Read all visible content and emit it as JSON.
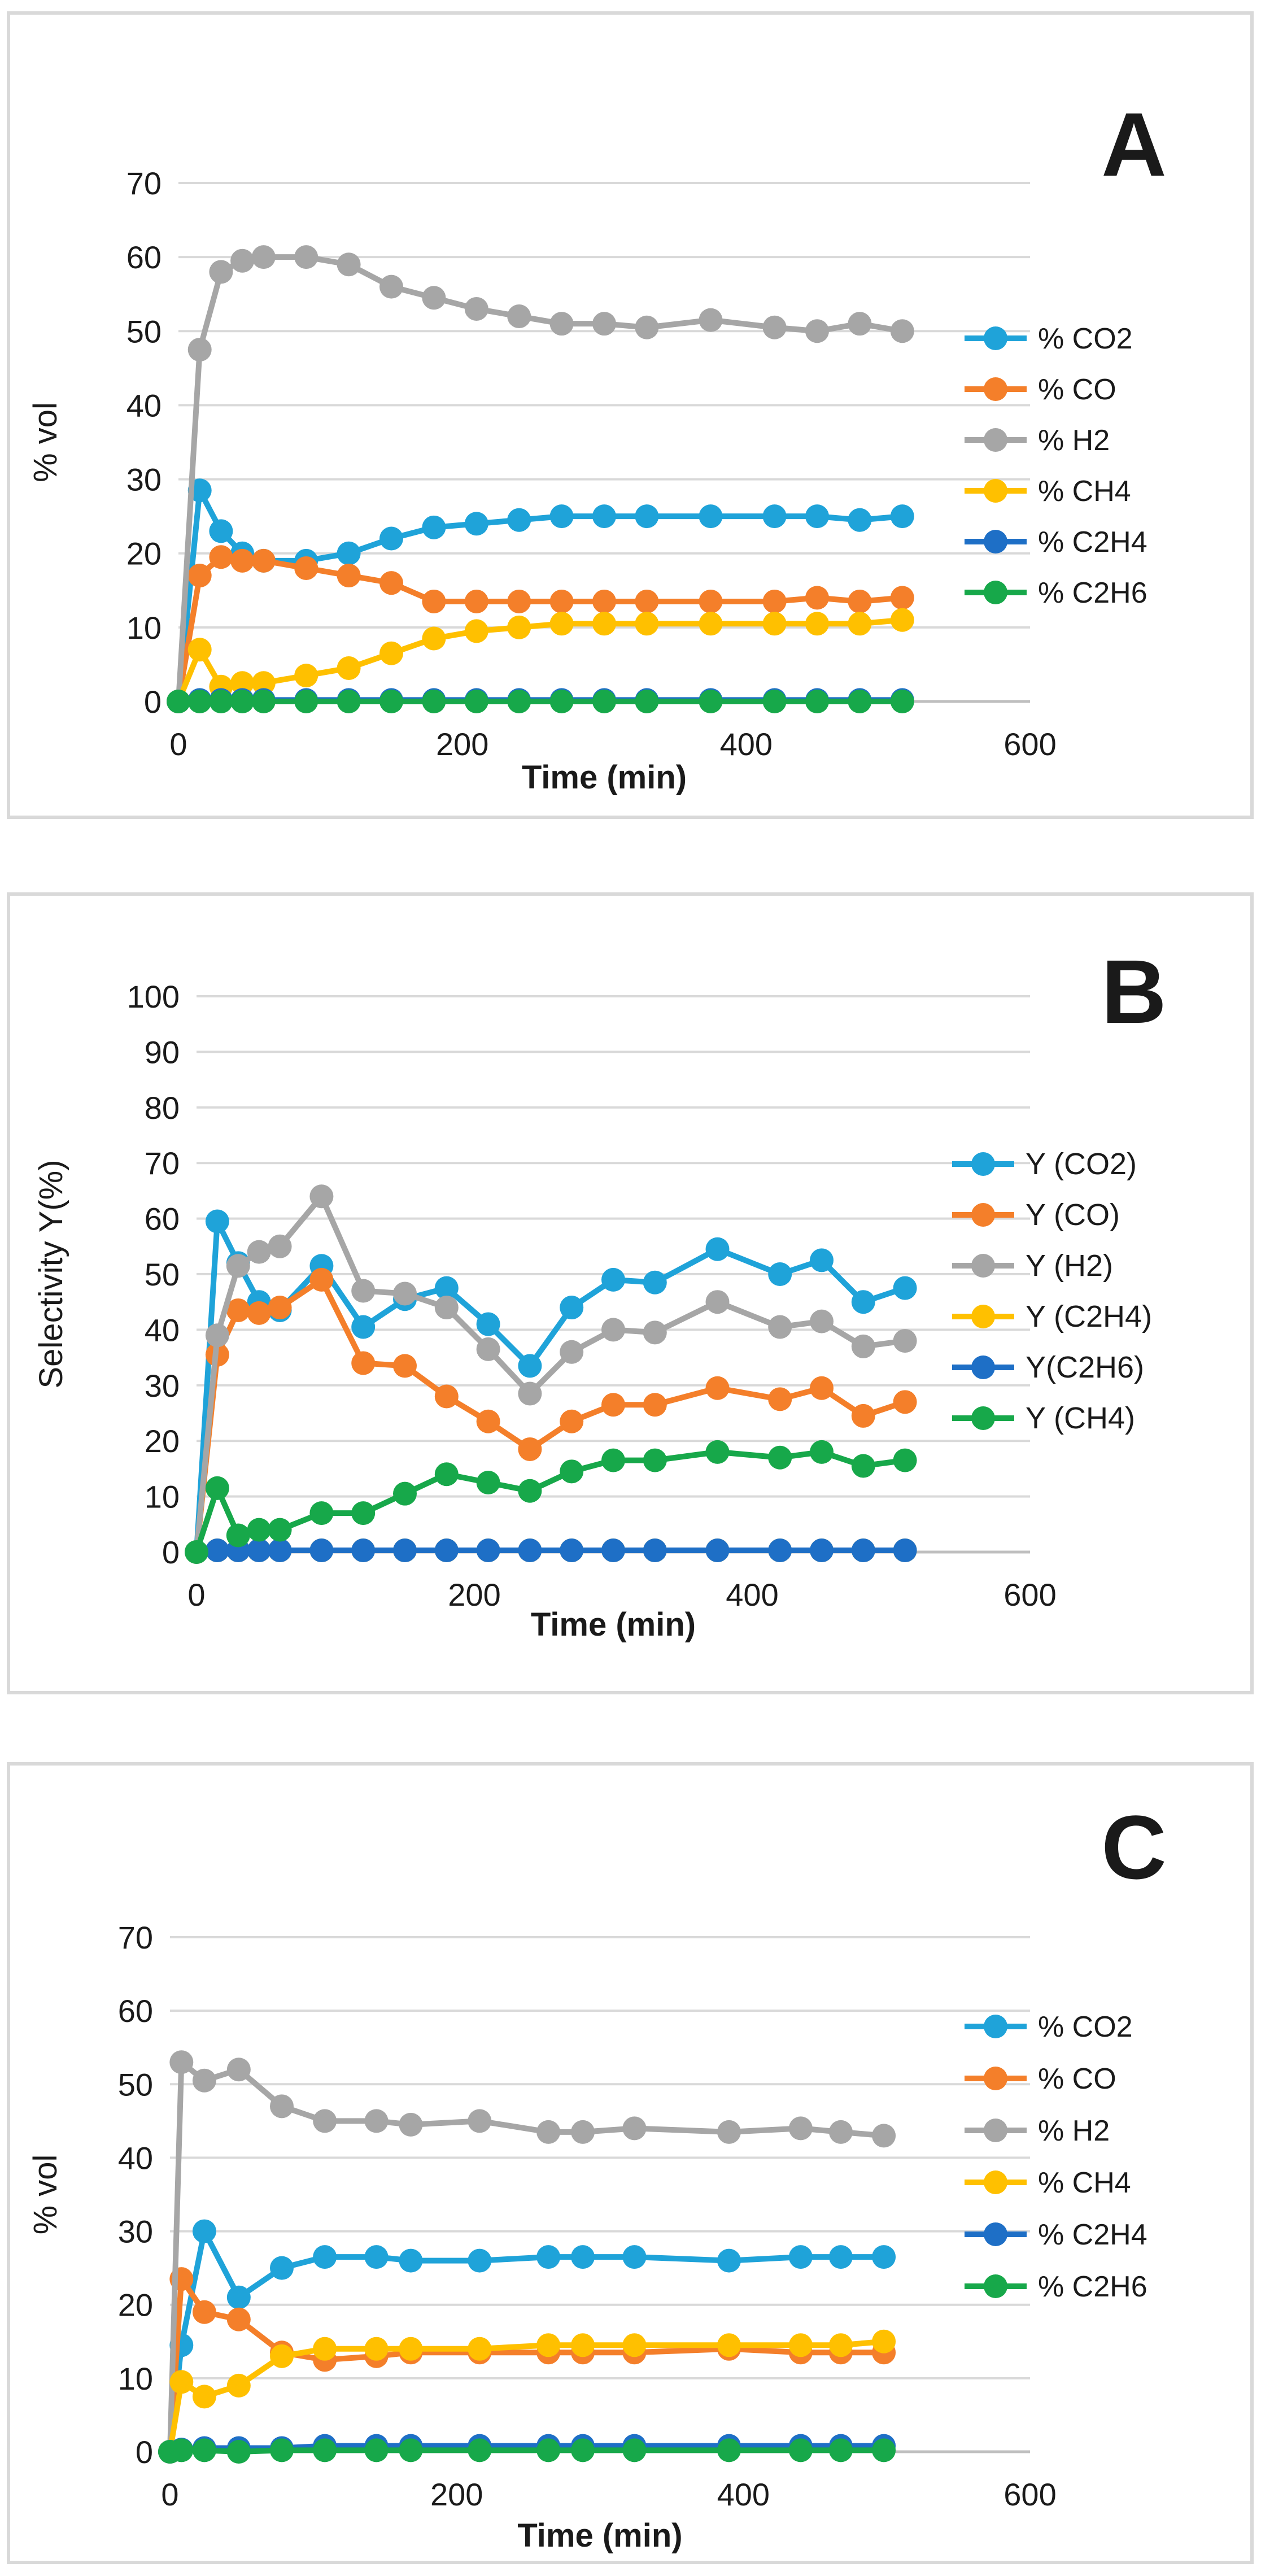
{
  "chart_data": [
    {
      "type": "line",
      "panel_label": "A",
      "xlabel": "Time (min)",
      "ylabel": "% vol",
      "xlim": [
        0,
        600
      ],
      "ylim": [
        0,
        70
      ],
      "xticks": [
        0,
        200,
        400,
        600
      ],
      "yticks": [
        0,
        10,
        20,
        30,
        40,
        50,
        60,
        70
      ],
      "grid": true,
      "legend": "right",
      "series": [
        {
          "name": "% CO2",
          "color": "#1fa3d9",
          "x": [
            0,
            15,
            30,
            45,
            60,
            90,
            120,
            150,
            180,
            210,
            240,
            270,
            300,
            330,
            375,
            420,
            450,
            480,
            510
          ],
          "y": [
            0,
            28.5,
            23,
            20,
            19,
            19,
            20,
            22,
            23.5,
            24,
            24.5,
            25,
            25,
            25,
            25,
            25,
            25,
            24.5,
            25
          ]
        },
        {
          "name": "% CO",
          "color": "#f47f2a",
          "x": [
            0,
            15,
            30,
            45,
            60,
            90,
            120,
            150,
            180,
            210,
            240,
            270,
            300,
            330,
            375,
            420,
            450,
            480,
            510
          ],
          "y": [
            0,
            17,
            19.5,
            19,
            19,
            18,
            17,
            16,
            13.5,
            13.5,
            13.5,
            13.5,
            13.5,
            13.5,
            13.5,
            13.5,
            14,
            13.5,
            14
          ]
        },
        {
          "name": "%  H2",
          "color": "#a6a6a6",
          "x": [
            0,
            15,
            30,
            45,
            60,
            90,
            120,
            150,
            180,
            210,
            240,
            270,
            300,
            330,
            375,
            420,
            450,
            480,
            510
          ],
          "y": [
            0,
            47.5,
            58,
            59.5,
            60,
            60,
            59,
            56,
            54.5,
            53,
            52,
            51,
            51,
            50.5,
            51.5,
            50.5,
            50,
            51,
            50
          ]
        },
        {
          "name": "% CH4",
          "color": "#ffc000",
          "x": [
            0,
            15,
            30,
            45,
            60,
            90,
            120,
            150,
            180,
            210,
            240,
            270,
            300,
            330,
            375,
            420,
            450,
            480,
            510
          ],
          "y": [
            0,
            7,
            2,
            2.5,
            2.5,
            3.5,
            4.5,
            6.5,
            8.5,
            9.5,
            10,
            10.5,
            10.5,
            10.5,
            10.5,
            10.5,
            10.5,
            10.5,
            11
          ]
        },
        {
          "name": "% C2H4",
          "color": "#1e6fc6",
          "x": [
            0,
            15,
            30,
            45,
            60,
            90,
            120,
            150,
            180,
            210,
            240,
            270,
            300,
            330,
            375,
            420,
            450,
            480,
            510
          ],
          "y": [
            0,
            0.2,
            0.2,
            0.2,
            0.2,
            0.2,
            0.2,
            0.2,
            0.2,
            0.2,
            0.2,
            0.2,
            0.2,
            0.2,
            0.2,
            0.2,
            0.2,
            0.2,
            0.2
          ]
        },
        {
          "name": "% C2H6",
          "color": "#17a84a",
          "x": [
            0,
            15,
            30,
            45,
            60,
            90,
            120,
            150,
            180,
            210,
            240,
            270,
            300,
            330,
            375,
            420,
            450,
            480,
            510
          ],
          "y": [
            0,
            0,
            0,
            0,
            0,
            0,
            0,
            0,
            0,
            0,
            0,
            0,
            0,
            0,
            0,
            0,
            0,
            0,
            0
          ]
        }
      ]
    },
    {
      "type": "line",
      "panel_label": "B",
      "xlabel": "Time (min)",
      "ylabel": "Selectivity Y(%)",
      "xlim": [
        0,
        600
      ],
      "ylim": [
        0,
        100
      ],
      "xticks": [
        0,
        200,
        400,
        600
      ],
      "yticks": [
        0,
        10,
        20,
        30,
        40,
        50,
        60,
        70,
        80,
        90,
        100
      ],
      "grid": true,
      "legend": "right",
      "series": [
        {
          "name": "Y (CO2)",
          "color": "#1fa3d9",
          "x": [
            0,
            15,
            30,
            45,
            60,
            90,
            120,
            150,
            180,
            210,
            240,
            270,
            300,
            330,
            375,
            420,
            450,
            480,
            510
          ],
          "y": [
            0,
            59.5,
            52,
            45,
            43.5,
            51.5,
            40.5,
            45.5,
            47.5,
            41,
            33.5,
            44,
            49,
            48.5,
            54.5,
            50,
            52.5,
            45,
            47.5
          ]
        },
        {
          "name": "Y (CO)",
          "color": "#f47f2a",
          "x": [
            0,
            15,
            30,
            45,
            60,
            90,
            120,
            150,
            180,
            210,
            240,
            270,
            300,
            330,
            375,
            420,
            450,
            480,
            510
          ],
          "y": [
            0,
            35.5,
            43.5,
            43,
            44,
            49,
            34,
            33.5,
            28,
            23.5,
            18.5,
            23.5,
            26.5,
            26.5,
            29.5,
            27.5,
            29.5,
            24.5,
            27
          ]
        },
        {
          "name": "Y (H2)",
          "color": "#a6a6a6",
          "x": [
            0,
            15,
            30,
            45,
            60,
            90,
            120,
            150,
            180,
            210,
            240,
            270,
            300,
            330,
            375,
            420,
            450,
            480,
            510
          ],
          "y": [
            0,
            39,
            51.5,
            54,
            55,
            64,
            47,
            46.5,
            44,
            36.5,
            28.5,
            36,
            40,
            39.5,
            45,
            40.5,
            41.5,
            37,
            38
          ]
        },
        {
          "name": "Y (C2H4)",
          "color": "#ffc000",
          "x": [
            15,
            30,
            45,
            60,
            90,
            120,
            150,
            180,
            210,
            240,
            270,
            300,
            330,
            375,
            420,
            450,
            480,
            510
          ],
          "y": [
            0.3,
            0.3,
            0.3,
            0.3,
            0.3,
            0.3,
            0.3,
            0.3,
            0.3,
            0.3,
            0.3,
            0.3,
            0.3,
            0.3,
            0.3,
            0.3,
            0.3,
            0.3
          ]
        },
        {
          "name": "Y(C2H6)",
          "color": "#1e6fc6",
          "x": [
            15,
            30,
            45,
            60,
            90,
            120,
            150,
            180,
            210,
            240,
            270,
            300,
            330,
            375,
            420,
            450,
            480,
            510
          ],
          "y": [
            0.3,
            0.3,
            0.3,
            0.3,
            0.3,
            0.3,
            0.3,
            0.3,
            0.3,
            0.3,
            0.3,
            0.3,
            0.3,
            0.3,
            0.3,
            0.3,
            0.3,
            0.3
          ]
        },
        {
          "name": "Y (CH4)",
          "color": "#17a84a",
          "x": [
            0,
            15,
            30,
            45,
            60,
            90,
            120,
            150,
            180,
            210,
            240,
            270,
            300,
            330,
            375,
            420,
            450,
            480,
            510
          ],
          "y": [
            0,
            11.5,
            3,
            4,
            4,
            7,
            7,
            10.5,
            14,
            12.5,
            11,
            14.5,
            16.5,
            16.5,
            18,
            17,
            18,
            15.5,
            16.5
          ]
        }
      ]
    },
    {
      "type": "line",
      "panel_label": "C",
      "xlabel": "Time (min)",
      "ylabel": "% vol",
      "xlim": [
        0,
        600
      ],
      "ylim": [
        0,
        70
      ],
      "xticks": [
        0,
        200,
        400,
        600
      ],
      "yticks": [
        0,
        10,
        20,
        30,
        40,
        50,
        60,
        70
      ],
      "grid": true,
      "legend": "right",
      "series": [
        {
          "name": "% CO2",
          "color": "#1fa3d9",
          "x": [
            0,
            8,
            24,
            48,
            78,
            108,
            144,
            168,
            216,
            264,
            288,
            324,
            390,
            440,
            468,
            498
          ],
          "y": [
            0,
            14.5,
            30,
            21,
            25,
            26.5,
            26.5,
            26,
            26,
            26.5,
            26.5,
            26.5,
            26,
            26.5,
            26.5,
            26.5
          ]
        },
        {
          "name": "% CO",
          "color": "#f47f2a",
          "x": [
            0,
            8,
            24,
            48,
            78,
            108,
            144,
            168,
            216,
            264,
            288,
            324,
            390,
            440,
            468,
            498
          ],
          "y": [
            0,
            23.5,
            19,
            18,
            13.5,
            12.5,
            13,
            13.5,
            13.5,
            13.5,
            13.5,
            13.5,
            14,
            13.5,
            13.5,
            13.5
          ]
        },
        {
          "name": "%  H2",
          "color": "#a6a6a6",
          "x": [
            0,
            8,
            24,
            48,
            78,
            108,
            144,
            168,
            216,
            264,
            288,
            324,
            390,
            440,
            468,
            498
          ],
          "y": [
            0,
            53,
            50.5,
            52,
            47,
            45,
            45,
            44.5,
            45,
            43.5,
            43.5,
            44,
            43.5,
            44,
            43.5,
            43
          ]
        },
        {
          "name": "% CH4",
          "color": "#ffc000",
          "x": [
            0,
            8,
            24,
            48,
            78,
            108,
            144,
            168,
            216,
            264,
            288,
            324,
            390,
            440,
            468,
            498
          ],
          "y": [
            0,
            9.5,
            7.5,
            9,
            13,
            14,
            14,
            14,
            14,
            14.5,
            14.5,
            14.5,
            14.5,
            14.5,
            14.5,
            15
          ]
        },
        {
          "name": "% C2H4",
          "color": "#1e6fc6",
          "x": [
            0,
            8,
            24,
            48,
            78,
            108,
            144,
            168,
            216,
            264,
            288,
            324,
            390,
            440,
            468,
            498
          ],
          "y": [
            0,
            0.3,
            0.5,
            0.5,
            0.5,
            0.8,
            0.8,
            0.8,
            0.8,
            0.8,
            0.8,
            0.8,
            0.8,
            0.8,
            0.8,
            0.8
          ]
        },
        {
          "name": "% C2H6",
          "color": "#17a84a",
          "x": [
            0,
            8,
            24,
            48,
            78,
            108,
            144,
            168,
            216,
            264,
            288,
            324,
            390,
            440,
            468,
            498
          ],
          "y": [
            0,
            0.2,
            0.2,
            0,
            0.2,
            0.2,
            0.2,
            0.2,
            0.2,
            0.2,
            0.2,
            0.2,
            0.2,
            0.2,
            0.2,
            0.2
          ]
        }
      ]
    }
  ]
}
